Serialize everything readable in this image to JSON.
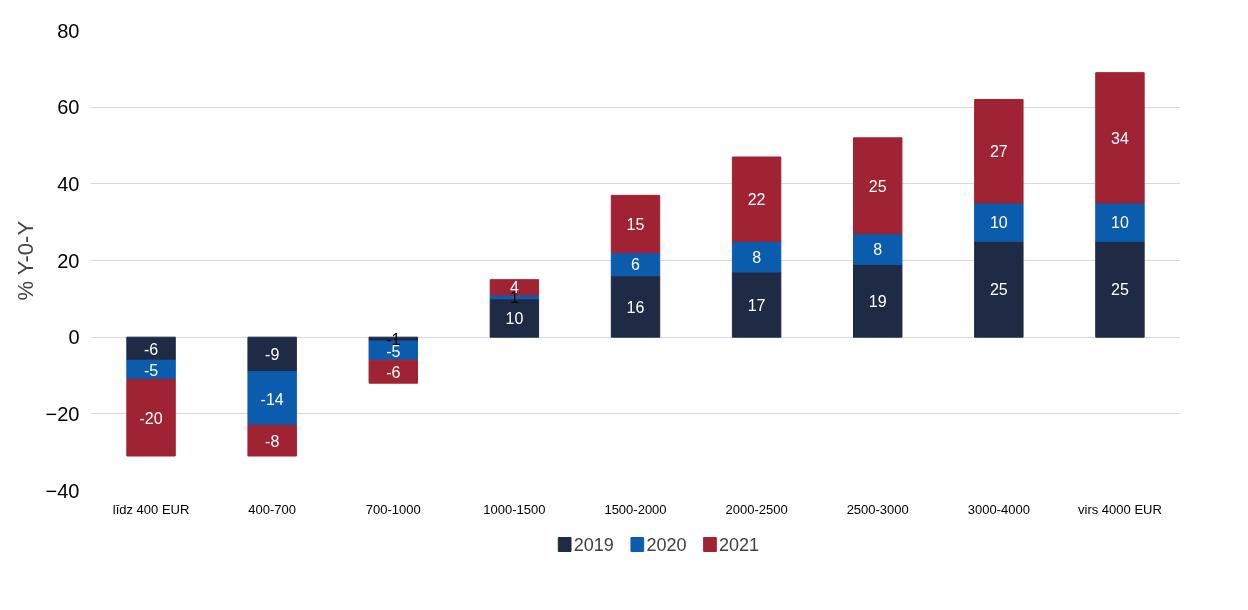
{
  "chart_data": {
    "type": "bar",
    "stacked": true,
    "ylabel": "% Y-0-Y",
    "categories": [
      "līdz 400 EUR",
      "400-700",
      "700-1000",
      "1000-1500",
      "1500-2000",
      "2000-2500",
      "2500-3000",
      "3000-4000",
      "virs 4000 EUR"
    ],
    "series": [
      {
        "name": "2019",
        "color": "#1f2a44",
        "values": [
          -6,
          -9,
          -1,
          10,
          16,
          17,
          19,
          25,
          25
        ]
      },
      {
        "name": "2020",
        "color": "#0b5cad",
        "values": [
          -5,
          -14,
          -5,
          1,
          6,
          8,
          8,
          10,
          10
        ]
      },
      {
        "name": "2021",
        "color": "#a02333",
        "values": [
          -20,
          -8,
          -6,
          4,
          15,
          22,
          25,
          27,
          34
        ]
      }
    ],
    "ylim": [
      -40,
      80
    ],
    "yticks": [
      -40,
      -20,
      0,
      20,
      40,
      60,
      80
    ],
    "grid": "y",
    "legend": "bottom",
    "data_labels": true
  }
}
